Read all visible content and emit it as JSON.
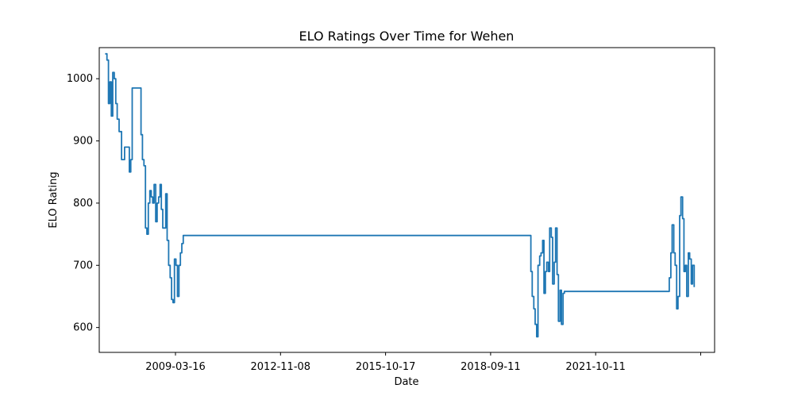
{
  "chart_data": {
    "type": "line",
    "title": "ELO Ratings Over Time for Wehen",
    "xlabel": "Date",
    "ylabel": "ELO Rating",
    "x_ticks": [
      "2009-03-16",
      "2012-11-08",
      "2015-10-17",
      "2018-09-11",
      "2021-10-11",
      ""
    ],
    "y_ticks": [
      "600",
      "700",
      "800",
      "900",
      "1000"
    ],
    "x_range": [
      "2007-06-01",
      "2024-12-31"
    ],
    "ylim": [
      560,
      1050
    ],
    "grid": false,
    "legend": "none",
    "series_color": "#1f77b4",
    "series": [
      {
        "x": [
          "2007-08-01",
          "2007-08-20",
          "2007-09-05",
          "2007-09-20",
          "2007-10-05",
          "2007-10-20",
          "2007-11-05",
          "2007-11-20",
          "2007-12-05",
          "2007-12-25",
          "2008-01-20",
          "2008-02-20",
          "2008-03-10",
          "2008-03-25",
          "2008-04-10",
          "2008-04-25",
          "2008-05-10",
          "2008-08-10",
          "2008-08-25",
          "2008-09-10",
          "2008-09-25",
          "2008-10-10",
          "2008-10-25",
          "2008-11-10",
          "2008-11-25",
          "2008-12-10",
          "2008-12-25",
          "2009-01-10",
          "2009-01-25",
          "2009-02-10",
          "2009-02-25",
          "2009-03-10",
          "2009-03-25",
          "2009-04-10",
          "2009-04-25",
          "2009-05-10",
          "2009-05-25",
          "2009-06-10",
          "2009-06-25",
          "2009-07-10",
          "2009-07-25",
          "2009-08-10",
          "2009-08-25",
          "2009-09-10",
          "2009-09-25",
          "2009-10-10",
          "2009-10-25",
          "2009-11-10",
          "2009-11-25",
          "2009-12-10",
          "2009-12-25",
          "2010-01-15",
          "2010-01-30",
          "2010-02-15",
          "2010-02-28",
          "2010-03-10",
          "2010-03-25",
          "2010-04-10",
          "2010-04-25",
          "2010-05-10",
          "2010-05-25",
          "2010-06-25",
          "2019-09-15",
          "2019-10-01",
          "2019-10-15",
          "2019-11-01",
          "2019-11-15",
          "2019-12-01",
          "2019-12-15",
          "2020-01-01",
          "2020-01-15",
          "2020-02-01",
          "2020-02-15",
          "2020-03-01",
          "2020-03-15",
          "2020-04-01",
          "2020-04-15",
          "2020-05-01",
          "2020-05-15",
          "2020-06-01",
          "2020-06-15",
          "2020-07-01",
          "2020-07-15",
          "2020-08-01",
          "2020-08-15",
          "2020-09-01",
          "2020-09-15",
          "2020-10-01",
          "2020-10-15",
          "2020-11-01",
          "2020-11-15",
          "2023-09-01",
          "2023-09-15",
          "2023-10-01",
          "2023-10-15",
          "2023-11-01",
          "2023-11-15",
          "2023-12-01",
          "2023-12-15",
          "2024-01-01",
          "2024-01-15",
          "2024-02-01",
          "2024-02-15",
          "2024-03-01",
          "2024-03-15",
          "2024-04-01",
          "2024-04-15",
          "2024-05-01",
          "2024-05-15",
          "2024-06-01"
        ],
        "values": [
          1040,
          1030,
          960,
          995,
          940,
          1010,
          1000,
          960,
          935,
          915,
          870,
          890,
          890,
          890,
          850,
          870,
          985,
          910,
          870,
          860,
          760,
          750,
          800,
          820,
          810,
          800,
          830,
          770,
          800,
          810,
          830,
          790,
          760,
          760,
          815,
          740,
          700,
          680,
          645,
          640,
          710,
          700,
          650,
          700,
          720,
          735,
          748,
          748,
          748,
          748,
          748,
          748,
          748,
          748,
          748,
          748,
          748,
          748,
          748,
          748,
          748,
          748,
          748,
          690,
          650,
          630,
          605,
          585,
          700,
          715,
          720,
          740,
          655,
          690,
          705,
          690,
          760,
          745,
          670,
          705,
          760,
          685,
          610,
          660,
          605,
          655,
          658,
          658,
          658,
          658,
          658,
          658,
          680,
          720,
          765,
          720,
          700,
          630,
          650,
          780,
          810,
          775,
          690,
          700,
          650,
          720,
          710,
          670,
          700,
          665
        ]
      }
    ]
  }
}
